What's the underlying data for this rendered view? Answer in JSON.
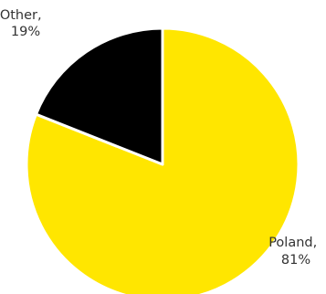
{
  "chart_data": {
    "type": "pie",
    "title": "",
    "slices": [
      {
        "label": "Poland",
        "value": 81,
        "label_text": [
          "Poland,",
          "81%"
        ],
        "color": "#FFE600"
      },
      {
        "label": "Other",
        "value": 19,
        "label_text": [
          "Other,",
          "19%"
        ],
        "color": "#000000"
      }
    ],
    "start_angle_deg": 0,
    "direction": "clockwise",
    "slice_border_color": "#ffffff",
    "legend": "none"
  }
}
